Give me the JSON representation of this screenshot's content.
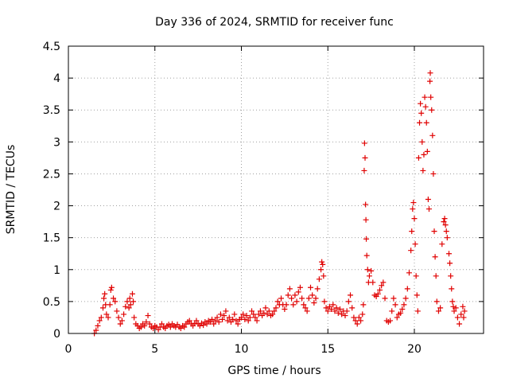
{
  "chart_data": {
    "type": "scatter",
    "title": "Day 336 of 2024, SRMTID for receiver func",
    "xlabel": "GPS time / hours",
    "ylabel": "SRMTID / TECUs",
    "xlim": [
      0,
      24
    ],
    "ylim": [
      0,
      4.5
    ],
    "x_ticks": [
      0,
      5,
      10,
      15,
      20
    ],
    "x_tick_labels": [
      "0",
      "5",
      "10",
      "15",
      "20"
    ],
    "y_ticks": [
      0,
      0.5,
      1,
      1.5,
      2,
      2.5,
      3,
      3.5,
      4,
      4.5
    ],
    "y_tick_labels": [
      "0",
      "0.5",
      "1",
      "1.5",
      "2",
      "2.5",
      "3",
      "3.5",
      "4",
      "4.5"
    ],
    "grid": true,
    "marker": "plus",
    "color": "#e00000",
    "series": [
      {
        "name": "SRMTID",
        "points": [
          [
            1.5,
            0.0
          ],
          [
            1.6,
            0.05
          ],
          [
            1.7,
            0.12
          ],
          [
            1.8,
            0.2
          ],
          [
            1.9,
            0.25
          ],
          [
            2.0,
            0.4
          ],
          [
            2.05,
            0.55
          ],
          [
            2.1,
            0.62
          ],
          [
            2.15,
            0.45
          ],
          [
            2.2,
            0.3
          ],
          [
            2.3,
            0.25
          ],
          [
            2.4,
            0.45
          ],
          [
            2.45,
            0.68
          ],
          [
            2.5,
            0.72
          ],
          [
            2.6,
            0.55
          ],
          [
            2.7,
            0.5
          ],
          [
            2.8,
            0.35
          ],
          [
            2.9,
            0.25
          ],
          [
            3.0,
            0.15
          ],
          [
            3.1,
            0.2
          ],
          [
            3.2,
            0.3
          ],
          [
            3.3,
            0.42
          ],
          [
            3.4,
            0.5
          ],
          [
            3.5,
            0.4
          ],
          [
            3.55,
            0.55
          ],
          [
            3.6,
            0.45
          ],
          [
            3.7,
            0.62
          ],
          [
            3.75,
            0.5
          ],
          [
            3.8,
            0.25
          ],
          [
            3.9,
            0.15
          ],
          [
            4.0,
            0.12
          ],
          [
            4.1,
            0.08
          ],
          [
            4.2,
            0.1
          ],
          [
            4.3,
            0.15
          ],
          [
            4.4,
            0.12
          ],
          [
            4.5,
            0.18
          ],
          [
            4.6,
            0.28
          ],
          [
            4.7,
            0.15
          ],
          [
            4.8,
            0.1
          ],
          [
            4.9,
            0.08
          ],
          [
            5.0,
            0.12
          ],
          [
            5.1,
            0.1
          ],
          [
            5.2,
            0.06
          ],
          [
            5.3,
            0.1
          ],
          [
            5.4,
            0.15
          ],
          [
            5.5,
            0.1
          ],
          [
            5.6,
            0.08
          ],
          [
            5.7,
            0.12
          ],
          [
            5.8,
            0.14
          ],
          [
            5.9,
            0.1
          ],
          [
            6.0,
            0.15
          ],
          [
            6.1,
            0.12
          ],
          [
            6.2,
            0.1
          ],
          [
            6.3,
            0.14
          ],
          [
            6.4,
            0.1
          ],
          [
            6.5,
            0.08
          ],
          [
            6.6,
            0.12
          ],
          [
            6.7,
            0.1
          ],
          [
            6.8,
            0.15
          ],
          [
            6.9,
            0.18
          ],
          [
            7.0,
            0.2
          ],
          [
            7.1,
            0.15
          ],
          [
            7.2,
            0.12
          ],
          [
            7.3,
            0.16
          ],
          [
            7.4,
            0.2
          ],
          [
            7.5,
            0.15
          ],
          [
            7.6,
            0.12
          ],
          [
            7.7,
            0.16
          ],
          [
            7.8,
            0.13
          ],
          [
            7.9,
            0.18
          ],
          [
            8.0,
            0.15
          ],
          [
            8.1,
            0.2
          ],
          [
            8.2,
            0.18
          ],
          [
            8.3,
            0.22
          ],
          [
            8.4,
            0.15
          ],
          [
            8.5,
            0.2
          ],
          [
            8.6,
            0.25
          ],
          [
            8.7,
            0.18
          ],
          [
            8.8,
            0.3
          ],
          [
            8.9,
            0.22
          ],
          [
            9.0,
            0.28
          ],
          [
            9.1,
            0.35
          ],
          [
            9.2,
            0.2
          ],
          [
            9.3,
            0.25
          ],
          [
            9.4,
            0.18
          ],
          [
            9.5,
            0.22
          ],
          [
            9.6,
            0.3
          ],
          [
            9.7,
            0.2
          ],
          [
            9.8,
            0.15
          ],
          [
            9.9,
            0.22
          ],
          [
            10.0,
            0.25
          ],
          [
            10.1,
            0.3
          ],
          [
            10.2,
            0.22
          ],
          [
            10.3,
            0.28
          ],
          [
            10.4,
            0.2
          ],
          [
            10.5,
            0.25
          ],
          [
            10.6,
            0.35
          ],
          [
            10.7,
            0.3
          ],
          [
            10.8,
            0.25
          ],
          [
            10.9,
            0.2
          ],
          [
            11.0,
            0.3
          ],
          [
            11.1,
            0.35
          ],
          [
            11.2,
            0.28
          ],
          [
            11.3,
            0.32
          ],
          [
            11.4,
            0.4
          ],
          [
            11.5,
            0.3
          ],
          [
            11.6,
            0.35
          ],
          [
            11.7,
            0.28
          ],
          [
            11.8,
            0.3
          ],
          [
            11.9,
            0.35
          ],
          [
            12.0,
            0.4
          ],
          [
            12.1,
            0.5
          ],
          [
            12.2,
            0.45
          ],
          [
            12.3,
            0.55
          ],
          [
            12.4,
            0.45
          ],
          [
            12.5,
            0.38
          ],
          [
            12.6,
            0.45
          ],
          [
            12.7,
            0.6
          ],
          [
            12.8,
            0.7
          ],
          [
            12.9,
            0.55
          ],
          [
            13.0,
            0.45
          ],
          [
            13.1,
            0.6
          ],
          [
            13.2,
            0.5
          ],
          [
            13.3,
            0.65
          ],
          [
            13.4,
            0.72
          ],
          [
            13.5,
            0.55
          ],
          [
            13.6,
            0.45
          ],
          [
            13.7,
            0.4
          ],
          [
            13.8,
            0.35
          ],
          [
            13.9,
            0.55
          ],
          [
            14.0,
            0.72
          ],
          [
            14.1,
            0.6
          ],
          [
            14.2,
            0.48
          ],
          [
            14.3,
            0.55
          ],
          [
            14.4,
            0.7
          ],
          [
            14.5,
            0.85
          ],
          [
            14.6,
            1.0
          ],
          [
            14.65,
            1.12
          ],
          [
            14.7,
            1.08
          ],
          [
            14.75,
            0.9
          ],
          [
            14.8,
            0.5
          ],
          [
            14.9,
            0.4
          ],
          [
            15.0,
            0.35
          ],
          [
            15.1,
            0.42
          ],
          [
            15.2,
            0.38
          ],
          [
            15.3,
            0.45
          ],
          [
            15.4,
            0.35
          ],
          [
            15.5,
            0.4
          ],
          [
            15.6,
            0.32
          ],
          [
            15.7,
            0.38
          ],
          [
            15.8,
            0.3
          ],
          [
            15.9,
            0.35
          ],
          [
            16.0,
            0.28
          ],
          [
            16.1,
            0.35
          ],
          [
            16.2,
            0.5
          ],
          [
            16.3,
            0.6
          ],
          [
            16.4,
            0.4
          ],
          [
            16.5,
            0.25
          ],
          [
            16.6,
            0.2
          ],
          [
            16.7,
            0.15
          ],
          [
            16.8,
            0.25
          ],
          [
            16.9,
            0.2
          ],
          [
            17.0,
            0.3
          ],
          [
            17.05,
            0.45
          ],
          [
            17.1,
            2.55
          ],
          [
            17.12,
            2.98
          ],
          [
            17.15,
            2.75
          ],
          [
            17.18,
            2.02
          ],
          [
            17.2,
            1.78
          ],
          [
            17.22,
            1.48
          ],
          [
            17.25,
            1.22
          ],
          [
            17.3,
            1.0
          ],
          [
            17.35,
            0.8
          ],
          [
            17.4,
            0.9
          ],
          [
            17.5,
            0.98
          ],
          [
            17.6,
            0.8
          ],
          [
            17.7,
            0.6
          ],
          [
            17.8,
            0.58
          ],
          [
            17.9,
            0.62
          ],
          [
            18.0,
            0.68
          ],
          [
            18.1,
            0.75
          ],
          [
            18.2,
            0.8
          ],
          [
            18.3,
            0.55
          ],
          [
            18.4,
            0.2
          ],
          [
            18.5,
            0.18
          ],
          [
            18.6,
            0.2
          ],
          [
            18.7,
            0.35
          ],
          [
            18.8,
            0.55
          ],
          [
            18.9,
            0.45
          ],
          [
            19.0,
            0.25
          ],
          [
            19.1,
            0.3
          ],
          [
            19.2,
            0.32
          ],
          [
            19.3,
            0.38
          ],
          [
            19.4,
            0.45
          ],
          [
            19.5,
            0.55
          ],
          [
            19.6,
            0.7
          ],
          [
            19.7,
            0.95
          ],
          [
            19.8,
            1.3
          ],
          [
            19.85,
            1.6
          ],
          [
            19.9,
            1.95
          ],
          [
            19.95,
            2.05
          ],
          [
            20.0,
            1.8
          ],
          [
            20.05,
            1.4
          ],
          [
            20.1,
            0.9
          ],
          [
            20.15,
            0.6
          ],
          [
            20.2,
            0.35
          ],
          [
            20.25,
            2.75
          ],
          [
            20.3,
            3.3
          ],
          [
            20.35,
            3.6
          ],
          [
            20.4,
            3.45
          ],
          [
            20.45,
            3.0
          ],
          [
            20.5,
            2.55
          ],
          [
            20.55,
            2.8
          ],
          [
            20.6,
            3.7
          ],
          [
            20.65,
            3.55
          ],
          [
            20.7,
            3.3
          ],
          [
            20.75,
            2.85
          ],
          [
            20.8,
            2.1
          ],
          [
            20.85,
            1.95
          ],
          [
            20.9,
            3.95
          ],
          [
            20.92,
            4.08
          ],
          [
            20.95,
            3.7
          ],
          [
            21.0,
            3.5
          ],
          [
            21.05,
            3.1
          ],
          [
            21.1,
            2.5
          ],
          [
            21.15,
            1.6
          ],
          [
            21.2,
            1.2
          ],
          [
            21.25,
            0.9
          ],
          [
            21.3,
            0.5
          ],
          [
            21.4,
            0.35
          ],
          [
            21.5,
            0.4
          ],
          [
            21.6,
            1.4
          ],
          [
            21.7,
            1.75
          ],
          [
            21.75,
            1.8
          ],
          [
            21.8,
            1.7
          ],
          [
            21.85,
            1.6
          ],
          [
            21.9,
            1.5
          ],
          [
            22.0,
            1.25
          ],
          [
            22.05,
            1.1
          ],
          [
            22.1,
            0.9
          ],
          [
            22.15,
            0.7
          ],
          [
            22.2,
            0.5
          ],
          [
            22.25,
            0.42
          ],
          [
            22.3,
            0.35
          ],
          [
            22.4,
            0.4
          ],
          [
            22.5,
            0.25
          ],
          [
            22.6,
            0.15
          ],
          [
            22.7,
            0.3
          ],
          [
            22.8,
            0.42
          ],
          [
            22.85,
            0.25
          ],
          [
            22.9,
            0.35
          ]
        ]
      }
    ]
  }
}
